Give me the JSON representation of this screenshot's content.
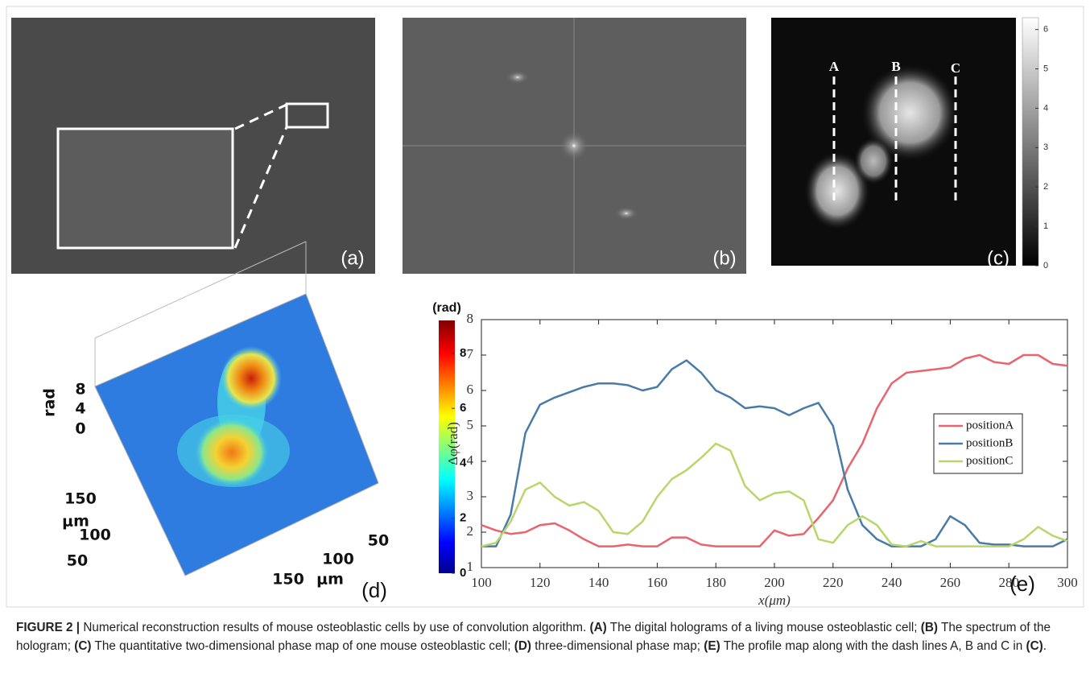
{
  "panel_a": {
    "label": "(a)"
  },
  "panel_b": {
    "label": "(b)"
  },
  "panel_c": {
    "label": "(c)",
    "markers": [
      "A",
      "B",
      "C"
    ],
    "colorbar": {
      "lim": [
        0,
        6.3
      ],
      "ticks": [
        0,
        1,
        2,
        3,
        4,
        5,
        6
      ]
    }
  },
  "panel_d": {
    "label": "(d)",
    "colorbar": {
      "title": "(rad)",
      "lim": [
        0,
        9.2
      ],
      "ticks": [
        0,
        2,
        4,
        6,
        8
      ]
    },
    "z_axis": {
      "label": "rad",
      "ticks": [
        8,
        4,
        0
      ]
    },
    "y_axis": {
      "label": "μm",
      "ticks": [
        150,
        100,
        50
      ]
    },
    "x_axis": {
      "label": "μm",
      "ticks": [
        50,
        100,
        150
      ]
    }
  },
  "chart_data": {
    "type": "line",
    "panel_label": "(e)",
    "x_label": "x(μm)",
    "y_label": "Δφ(rad)",
    "x": [
      100,
      105,
      110,
      115,
      120,
      125,
      130,
      135,
      140,
      145,
      150,
      155,
      160,
      165,
      170,
      175,
      180,
      185,
      190,
      195,
      200,
      205,
      210,
      215,
      220,
      225,
      230,
      235,
      240,
      245,
      250,
      255,
      260,
      265,
      270,
      275,
      280,
      285,
      290,
      295,
      300
    ],
    "series": [
      {
        "name": "positionA",
        "color": "#e8646e",
        "values": [
          2.2,
          2.05,
          1.95,
          2.0,
          2.2,
          2.25,
          2.05,
          1.8,
          1.6,
          1.6,
          1.65,
          1.6,
          1.6,
          1.85,
          1.85,
          1.65,
          1.6,
          1.6,
          1.6,
          1.6,
          2.05,
          1.9,
          1.95,
          2.4,
          2.9,
          3.8,
          4.5,
          5.5,
          6.2,
          6.5,
          6.55,
          6.6,
          6.65,
          6.9,
          7.0,
          6.8,
          6.75,
          7.0,
          7.0,
          6.75,
          6.7
        ]
      },
      {
        "name": "positionB",
        "color": "#4a7ba6",
        "values": [
          1.6,
          1.6,
          2.5,
          4.8,
          5.6,
          5.8,
          5.95,
          6.1,
          6.2,
          6.2,
          6.15,
          6.0,
          6.1,
          6.6,
          6.85,
          6.5,
          6.0,
          5.8,
          5.5,
          5.55,
          5.5,
          5.3,
          5.5,
          5.65,
          5.0,
          3.2,
          2.2,
          1.8,
          1.6,
          1.6,
          1.6,
          1.8,
          2.45,
          2.2,
          1.7,
          1.65,
          1.65,
          1.6,
          1.6,
          1.6,
          1.8
        ]
      },
      {
        "name": "positionC",
        "color": "#b9d66b",
        "values": [
          1.6,
          1.7,
          2.3,
          3.2,
          3.4,
          3.0,
          2.75,
          2.85,
          2.6,
          2.0,
          1.95,
          2.3,
          3.0,
          3.5,
          3.75,
          4.1,
          4.5,
          4.3,
          3.3,
          2.9,
          3.1,
          3.15,
          2.9,
          1.8,
          1.7,
          2.2,
          2.45,
          2.2,
          1.65,
          1.6,
          1.75,
          1.6,
          1.6,
          1.6,
          1.6,
          1.6,
          1.6,
          1.8,
          2.15,
          1.9,
          1.75
        ]
      }
    ],
    "xlim": [
      100,
      300
    ],
    "ylim": [
      1,
      8
    ],
    "xticks": [
      100,
      120,
      140,
      160,
      180,
      200,
      220,
      240,
      260,
      280,
      300
    ],
    "yticks": [
      1,
      2,
      3,
      4,
      5,
      6,
      7,
      8
    ],
    "legend": "center right"
  },
  "caption": {
    "parts": [
      "FIGURE 2 |",
      "Numerical reconstruction results of mouse osteoblastic cells by use of convolution algorithm.",
      "(A)",
      "The digital holograms of a living mouse osteoblastic cell;",
      "(B)",
      "The spectrum of the hologram;",
      "(C)",
      "The quantitative two-dimensional phase map of one mouse osteoblastic cell;",
      "(D)",
      "three-dimensional phase map;",
      "(E)",
      "The profile map along with the dash lines A, B and C in",
      "(C)",
      "."
    ]
  }
}
